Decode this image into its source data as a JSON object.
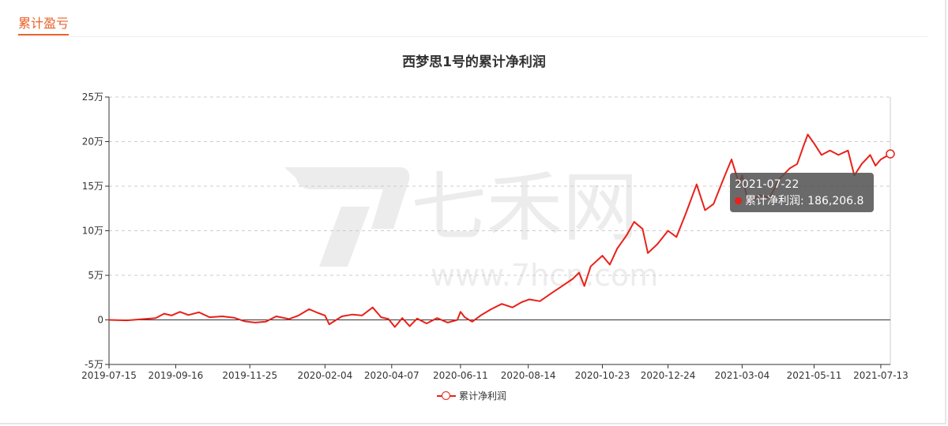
{
  "panel": {
    "title": "累计盈亏"
  },
  "tooltip": {
    "date": "2021-07-22",
    "series": "累计净利润",
    "value": "186,206.8"
  },
  "colors": {
    "line": "#e8211a",
    "accent": "#e8622a",
    "grid": "#cccccc",
    "watermark": "#ececec"
  },
  "watermark": {
    "brand": "七禾网",
    "url": "www.7hcn.com"
  },
  "chart_data": {
    "type": "line",
    "title": "西梦思1号的累计净利润",
    "legend": "bottom-center",
    "grid": true,
    "y_tick_labels": [
      "25万",
      "20万",
      "15万",
      "10万",
      "5万",
      "0",
      "-5万"
    ],
    "y_ticks": [
      250000,
      200000,
      150000,
      100000,
      50000,
      0,
      -50000
    ],
    "ylim": [
      -50000,
      250000
    ],
    "x_tick_labels": [
      "2019-07-15",
      "2019-09-16",
      "2019-11-25",
      "2020-02-04",
      "2020-04-07",
      "2020-06-11",
      "2020-08-14",
      "2020-10-23",
      "2020-12-24",
      "2021-03-04",
      "2021-05-11",
      "2021-07-13"
    ],
    "series": [
      {
        "name": "累计净利润",
        "points": [
          [
            "2019-07-15",
            0
          ],
          [
            "2019-08-01",
            -500
          ],
          [
            "2019-08-15",
            800
          ],
          [
            "2019-08-28",
            2000
          ],
          [
            "2019-09-05",
            7000
          ],
          [
            "2019-09-12",
            5000
          ],
          [
            "2019-09-20",
            9000
          ],
          [
            "2019-09-28",
            5500
          ],
          [
            "2019-10-08",
            8500
          ],
          [
            "2019-10-18",
            3000
          ],
          [
            "2019-10-30",
            4000
          ],
          [
            "2019-11-10",
            2500
          ],
          [
            "2019-11-20",
            -1500
          ],
          [
            "2019-11-30",
            -3000
          ],
          [
            "2019-12-10",
            -2000
          ],
          [
            "2019-12-20",
            4000
          ],
          [
            "2020-01-01",
            1000
          ],
          [
            "2020-01-10",
            5000
          ],
          [
            "2020-01-20",
            12000
          ],
          [
            "2020-01-28",
            8000
          ],
          [
            "2020-02-04",
            5000
          ],
          [
            "2020-02-08",
            -5000
          ],
          [
            "2020-02-20",
            4000
          ],
          [
            "2020-03-01",
            6000
          ],
          [
            "2020-03-10",
            5000
          ],
          [
            "2020-03-20",
            14000
          ],
          [
            "2020-03-28",
            3000
          ],
          [
            "2020-04-04",
            1000
          ],
          [
            "2020-04-10",
            -8000
          ],
          [
            "2020-04-17",
            2000
          ],
          [
            "2020-04-24",
            -7000
          ],
          [
            "2020-05-01",
            1500
          ],
          [
            "2020-05-10",
            -4000
          ],
          [
            "2020-05-20",
            2000
          ],
          [
            "2020-05-30",
            -3000
          ],
          [
            "2020-06-08",
            0
          ],
          [
            "2020-06-11",
            9000
          ],
          [
            "2020-06-15",
            3000
          ],
          [
            "2020-06-22",
            -2000
          ],
          [
            "2020-06-30",
            5000
          ],
          [
            "2020-07-10",
            12000
          ],
          [
            "2020-07-20",
            18000
          ],
          [
            "2020-07-30",
            14000
          ],
          [
            "2020-08-08",
            20000
          ],
          [
            "2020-08-15",
            23000
          ],
          [
            "2020-08-25",
            21000
          ],
          [
            "2020-09-05",
            30000
          ],
          [
            "2020-09-15",
            38000
          ],
          [
            "2020-09-25",
            46000
          ],
          [
            "2020-10-01",
            53000
          ],
          [
            "2020-10-06",
            38000
          ],
          [
            "2020-10-12",
            60000
          ],
          [
            "2020-10-23",
            72000
          ],
          [
            "2020-10-30",
            62000
          ],
          [
            "2020-11-06",
            80000
          ],
          [
            "2020-11-15",
            95000
          ],
          [
            "2020-11-22",
            110000
          ],
          [
            "2020-11-30",
            102000
          ],
          [
            "2020-12-05",
            75000
          ],
          [
            "2020-12-14",
            85000
          ],
          [
            "2020-12-24",
            100000
          ],
          [
            "2021-01-01",
            93000
          ],
          [
            "2021-01-10",
            120000
          ],
          [
            "2021-01-20",
            152000
          ],
          [
            "2021-01-28",
            123000
          ],
          [
            "2021-02-05",
            130000
          ],
          [
            "2021-02-15",
            160000
          ],
          [
            "2021-02-22",
            180000
          ],
          [
            "2021-03-01",
            153000
          ],
          [
            "2021-03-04",
            162000
          ],
          [
            "2021-03-10",
            130000
          ],
          [
            "2021-03-20",
            140000
          ],
          [
            "2021-03-30",
            137000
          ],
          [
            "2021-04-08",
            158000
          ],
          [
            "2021-04-18",
            170000
          ],
          [
            "2021-04-25",
            175000
          ],
          [
            "2021-05-01",
            195000
          ],
          [
            "2021-05-05",
            208000
          ],
          [
            "2021-05-11",
            198000
          ],
          [
            "2021-05-18",
            185000
          ],
          [
            "2021-05-26",
            190000
          ],
          [
            "2021-06-03",
            185000
          ],
          [
            "2021-06-12",
            190000
          ],
          [
            "2021-06-18",
            162000
          ],
          [
            "2021-06-25",
            175000
          ],
          [
            "2021-07-03",
            185000
          ],
          [
            "2021-07-08",
            173000
          ],
          [
            "2021-07-13",
            180000
          ],
          [
            "2021-07-22",
            186206.8
          ]
        ]
      }
    ]
  }
}
